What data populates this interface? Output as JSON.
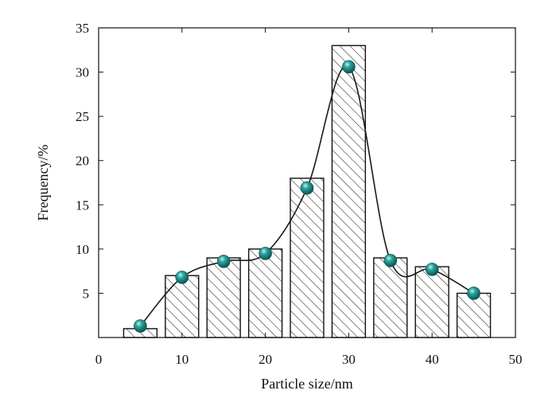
{
  "chart_data": {
    "type": "bar",
    "title": "",
    "xlabel": "Particle size/nm",
    "ylabel": "Frequency/%",
    "xlim": [
      0,
      50
    ],
    "ylim": [
      0,
      35
    ],
    "x_ticks": [
      0,
      10,
      20,
      30,
      40,
      50
    ],
    "y_ticks": [
      5,
      10,
      15,
      20,
      25,
      30,
      35
    ],
    "x_tick_labels": [
      "0",
      "10",
      "20",
      "30",
      "40",
      "50"
    ],
    "y_tick_labels": [
      "5",
      "10",
      "15",
      "20",
      "25",
      "30",
      "35"
    ],
    "bar_width": 4,
    "bar_fill": "hatched",
    "grid": false,
    "legend": "none",
    "series": [
      {
        "type": "bar",
        "x": [
          5,
          10,
          15,
          20,
          25,
          30,
          35,
          40,
          45
        ],
        "values": [
          1.0,
          7.0,
          9.0,
          10.0,
          18.0,
          33.0,
          9.0,
          8.0,
          5.0
        ]
      },
      {
        "type": "line",
        "smooth": true,
        "marker": "sphere",
        "x": [
          5,
          10,
          15,
          20,
          25,
          30,
          35,
          40,
          45
        ],
        "values": [
          1.3,
          6.8,
          8.6,
          9.5,
          16.9,
          30.6,
          8.7,
          7.7,
          5.0
        ]
      }
    ],
    "colors": {
      "axis": "#111111",
      "bar_edge": "#111111",
      "hatch": "#333333",
      "curve": "#1a1a1a",
      "marker": "#1a8a86",
      "marker_dark": "#0b4f4c",
      "marker_highlight": "#bff0ea"
    }
  }
}
